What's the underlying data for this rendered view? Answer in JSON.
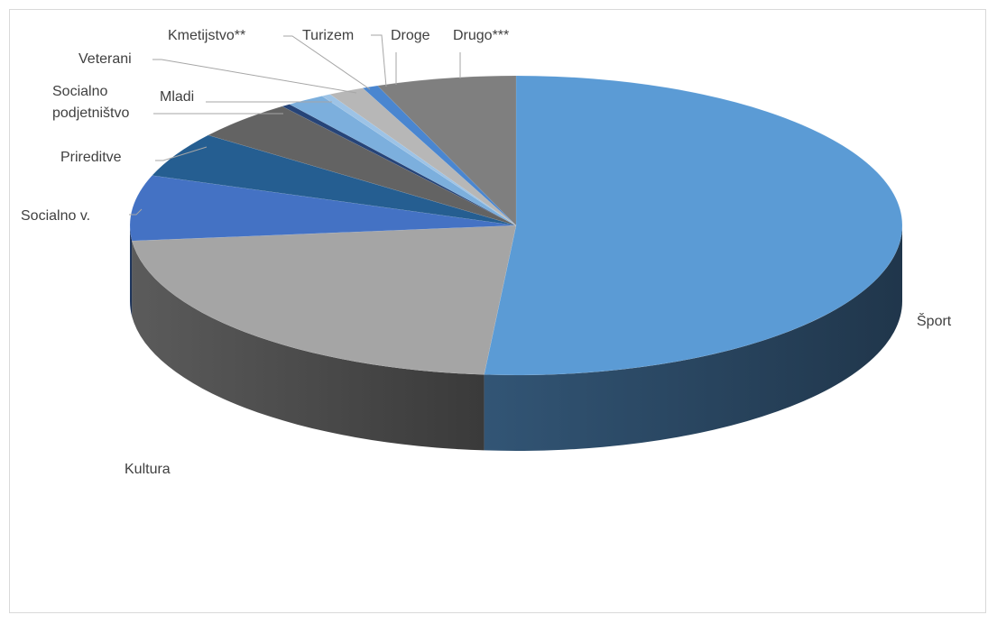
{
  "chart_data": {
    "type": "pie",
    "title": "",
    "style": "3d",
    "categories": [
      "Šport",
      "Kultura",
      "Socialno v.",
      "Prireditve",
      "Socialno podjetništvo",
      "Mladi",
      "Veterani",
      "Kmetijstvo**",
      "Turizem",
      "Droge",
      "Drugo***"
    ],
    "values": [
      54.5,
      23.4,
      7.5,
      5.2,
      4.6,
      0.4,
      1.7,
      0.4,
      1.6,
      0.7,
      6.2
    ],
    "colors": [
      "#5b9bd5",
      "#a5a5a5",
      "#4472c4",
      "#255e91",
      "#636363",
      "#264478",
      "#7cafdd",
      "#9dc3e6",
      "#b7b7b7",
      "#4a86d0",
      "#7f7f7f"
    ],
    "legend": "none",
    "labels_outside": true
  }
}
